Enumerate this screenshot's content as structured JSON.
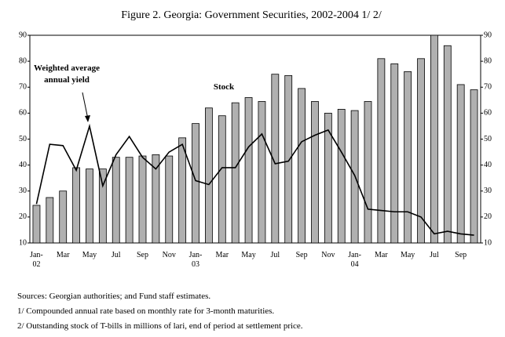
{
  "chart_data": {
    "type": "bar_line",
    "title": "Figure 2. Georgia: Government Securities, 2002-2004 1/ 2/",
    "categories": [
      "Jan-\n02",
      null,
      "Mar",
      null,
      "May",
      null,
      "Jul",
      null,
      "Sep",
      null,
      "Nov",
      null,
      "Jan-\n03",
      null,
      "Mar",
      null,
      "May",
      null,
      "Jul",
      null,
      "Sep",
      null,
      "Nov",
      null,
      "Jan-\n04",
      null,
      "Mar",
      null,
      "May",
      null,
      "Jul",
      null,
      "Sep",
      null
    ],
    "series": [
      {
        "name": "Stock",
        "type": "bar",
        "color": "#b0b0b0",
        "axis": "y2",
        "values": [
          24.5,
          27.5,
          30,
          39,
          38.5,
          38.5,
          43,
          43,
          43.5,
          44,
          43.5,
          50.5,
          56,
          62,
          59,
          64,
          66,
          64.5,
          75,
          74.5,
          69.5,
          64.5,
          60,
          61.5,
          61,
          64.5,
          81,
          79,
          76,
          81,
          90,
          86,
          71,
          69
        ]
      },
      {
        "name": "Weighted average\nannual yield",
        "type": "line",
        "color": "#000000",
        "values": [
          25,
          48,
          47.5,
          38,
          55,
          32,
          44,
          51,
          43,
          38.5,
          45,
          48,
          34,
          32.5,
          39,
          39,
          47,
          52,
          40.5,
          41.5,
          49,
          51.5,
          53.5,
          45,
          36,
          23,
          22.5,
          22,
          22,
          20,
          13.5,
          14.5,
          13.5,
          13
        ]
      }
    ],
    "ylim": [
      10,
      90
    ],
    "yticks": [
      10,
      20,
      30,
      40,
      50,
      60,
      70,
      80,
      90
    ],
    "y2lim": [
      10,
      90
    ],
    "y2ticks": [
      10,
      20,
      30,
      40,
      50,
      60,
      70,
      80,
      90
    ],
    "footnotes": [
      "Sources: Georgian authorities; and Fund staff estimates.",
      "1/ Compounded annual rate based on monthly rate for 3-month maturities.",
      "2/  Outstanding stock of T-bills in millions of lari, end of period at settlement price."
    ]
  }
}
